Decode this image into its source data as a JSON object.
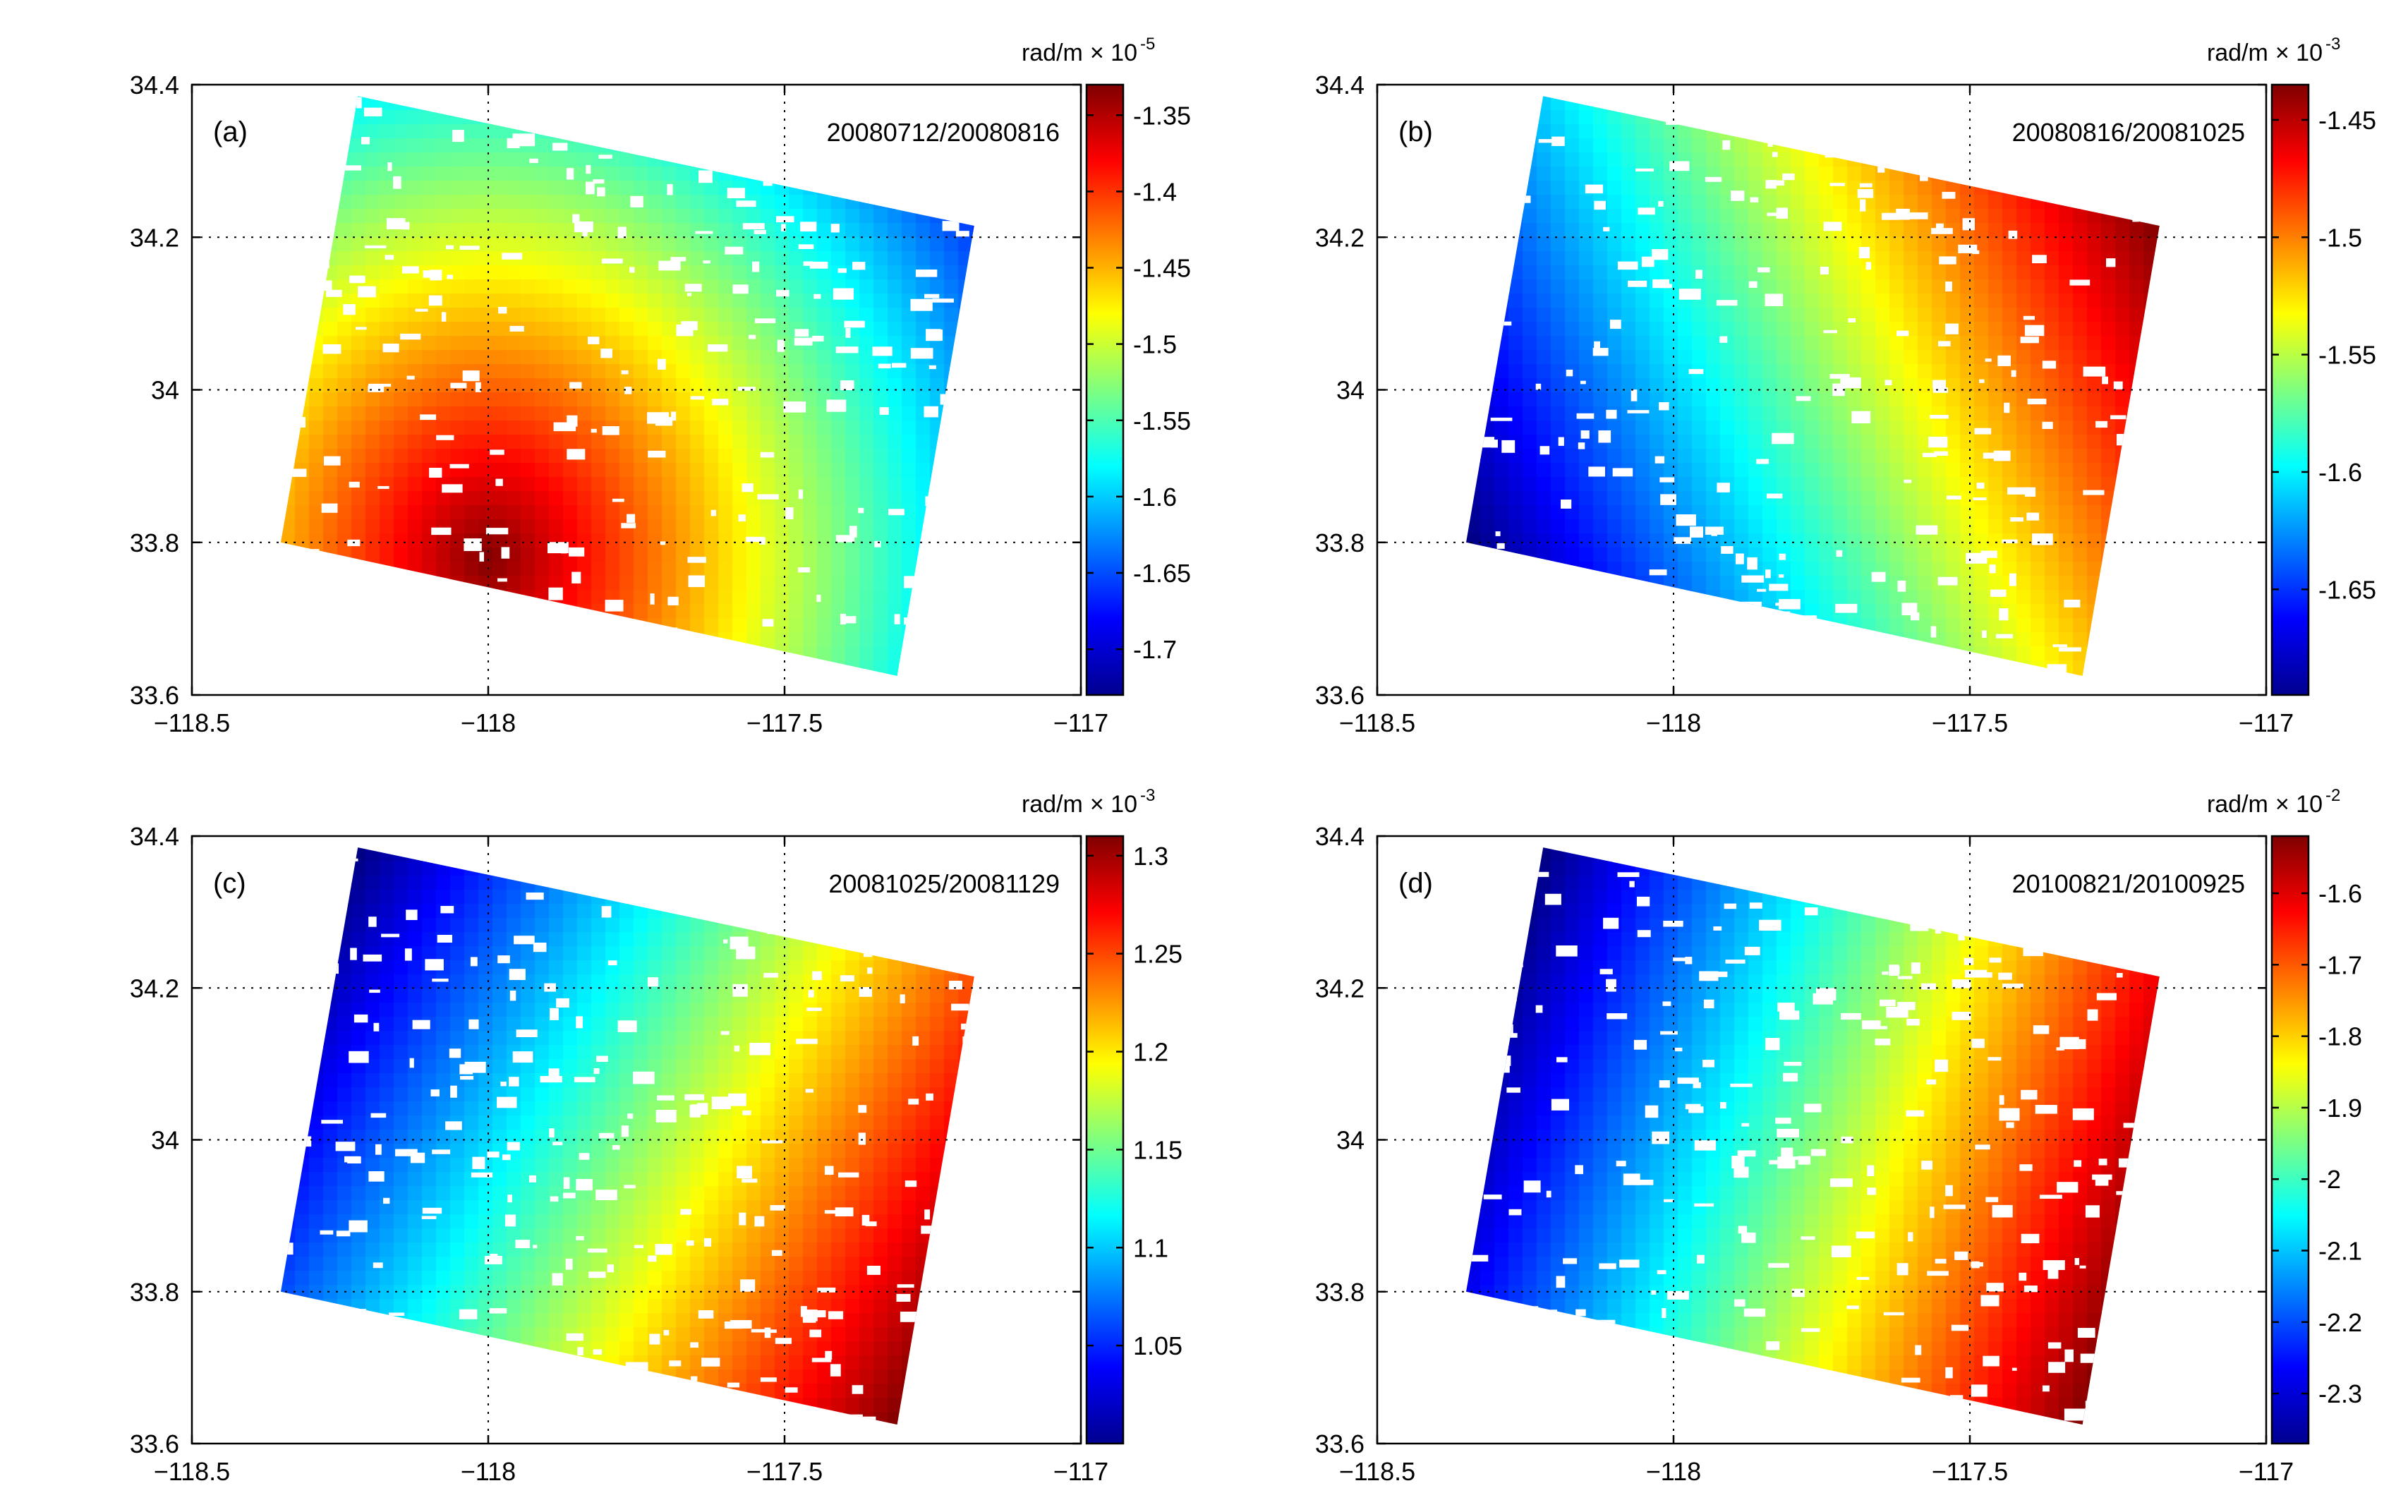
{
  "chart_data": [
    {
      "type": "heatmap",
      "panel_label": "(a)",
      "title": "20080712/20080816",
      "xlim": [
        -118.5,
        -117
      ],
      "ylim": [
        33.6,
        34.4
      ],
      "xticks": [
        -118.5,
        -118,
        -117.5,
        -117
      ],
      "xtick_labels": [
        "−118.5",
        "−118",
        "−117.5",
        "−117"
      ],
      "yticks": [
        33.6,
        33.8,
        34,
        34.2,
        34.4
      ],
      "ytick_labels": [
        "33.6",
        "33.8",
        "34",
        "34.2",
        "34.4"
      ],
      "grid": true,
      "footprint": [
        [
          -118.22,
          34.385
        ],
        [
          -117.18,
          34.215
        ],
        [
          -117.31,
          33.625
        ],
        [
          -118.35,
          33.8
        ]
      ],
      "field": {
        "kind": "radial",
        "center": [
          -118.0,
          33.78
        ],
        "scale": [
          1.0,
          0.62
        ],
        "reach": 1.15,
        "reversed": false
      },
      "colorbar": {
        "unit": "rad/m",
        "multiplier_base": "× 10",
        "exponent": "-5",
        "range": [
          -1.73,
          -1.33
        ],
        "ticks": [
          -1.35,
          -1.4,
          -1.45,
          -1.5,
          -1.55,
          -1.6,
          -1.65,
          -1.7
        ],
        "tick_labels": [
          "-1.35",
          "-1.4",
          "-1.45",
          "-1.5",
          "-1.55",
          "-1.6",
          "-1.65",
          "-1.7"
        ]
      }
    },
    {
      "type": "heatmap",
      "panel_label": "(b)",
      "title": "20080816/20081025",
      "xlim": [
        -118.5,
        -117
      ],
      "ylim": [
        33.6,
        34.4
      ],
      "xticks": [
        -118.5,
        -118,
        -117.5,
        -117
      ],
      "xtick_labels": [
        "−118.5",
        "−118",
        "−117.5",
        "−117"
      ],
      "yticks": [
        33.6,
        33.8,
        34,
        34.2,
        34.4
      ],
      "ytick_labels": [
        "33.6",
        "33.8",
        "34",
        "34.2",
        "34.4"
      ],
      "grid": true,
      "footprint": [
        [
          -118.22,
          34.385
        ],
        [
          -117.18,
          34.215
        ],
        [
          -117.31,
          33.625
        ],
        [
          -118.35,
          33.8
        ]
      ],
      "field": {
        "kind": "linear",
        "dir": [
          1.0,
          0.45
        ],
        "reversed": false
      },
      "colorbar": {
        "unit": "rad/m",
        "multiplier_base": "× 10",
        "exponent": "-3",
        "range": [
          -1.695,
          -1.435
        ],
        "ticks": [
          -1.45,
          -1.5,
          -1.55,
          -1.6,
          -1.65
        ],
        "tick_labels": [
          "-1.45",
          "-1.5",
          "-1.55",
          "-1.6",
          "-1.65"
        ]
      }
    },
    {
      "type": "heatmap",
      "panel_label": "(c)",
      "title": "20081025/20081129",
      "xlim": [
        -118.5,
        -117
      ],
      "ylim": [
        33.6,
        34.4
      ],
      "xticks": [
        -118.5,
        -118,
        -117.5,
        -117
      ],
      "xtick_labels": [
        "−118.5",
        "−118",
        "−117.5",
        "−117"
      ],
      "yticks": [
        33.6,
        33.8,
        34,
        34.2,
        34.4
      ],
      "ytick_labels": [
        "33.6",
        "33.8",
        "34",
        "34.2",
        "34.4"
      ],
      "grid": true,
      "footprint": [
        [
          -118.22,
          34.385
        ],
        [
          -117.18,
          34.215
        ],
        [
          -117.31,
          33.625
        ],
        [
          -118.35,
          33.8
        ]
      ],
      "field": {
        "kind": "linear",
        "dir": [
          1.0,
          -0.55
        ],
        "reversed": false
      },
      "colorbar": {
        "unit": "rad/m",
        "multiplier_base": "× 10",
        "exponent": "-3",
        "range": [
          1.0,
          1.31
        ],
        "ticks": [
          1.3,
          1.25,
          1.2,
          1.15,
          1.1,
          1.05
        ],
        "tick_labels": [
          "1.3",
          "1.25",
          "1.2",
          "1.15",
          "1.1",
          "1.05"
        ]
      }
    },
    {
      "type": "heatmap",
      "panel_label": "(d)",
      "title": "20100821/20100925",
      "xlim": [
        -118.5,
        -117
      ],
      "ylim": [
        33.6,
        34.4
      ],
      "xticks": [
        -118.5,
        -118,
        -117.5,
        -117
      ],
      "xtick_labels": [
        "−118.5",
        "−118",
        "−117.5",
        "−117"
      ],
      "yticks": [
        33.6,
        33.8,
        34,
        34.2,
        34.4
      ],
      "ytick_labels": [
        "33.6",
        "33.8",
        "34",
        "34.2",
        "34.4"
      ],
      "grid": true,
      "footprint": [
        [
          -118.22,
          34.385
        ],
        [
          -117.18,
          34.215
        ],
        [
          -117.31,
          33.625
        ],
        [
          -118.35,
          33.8
        ]
      ],
      "field": {
        "kind": "linear",
        "dir": [
          1.0,
          -0.35
        ],
        "reversed": false
      },
      "colorbar": {
        "unit": "rad/m",
        "multiplier_base": "× 10",
        "exponent": "-2",
        "range": [
          -2.37,
          -1.52
        ],
        "ticks": [
          -1.6,
          -1.7,
          -1.8,
          -1.9,
          -2,
          -2.1,
          -2.2,
          -2.3
        ],
        "tick_labels": [
          "-1.6",
          "-1.7",
          "-1.8",
          "-1.9",
          "-2",
          "-2.1",
          "-2.2",
          "-2.3"
        ]
      }
    }
  ]
}
